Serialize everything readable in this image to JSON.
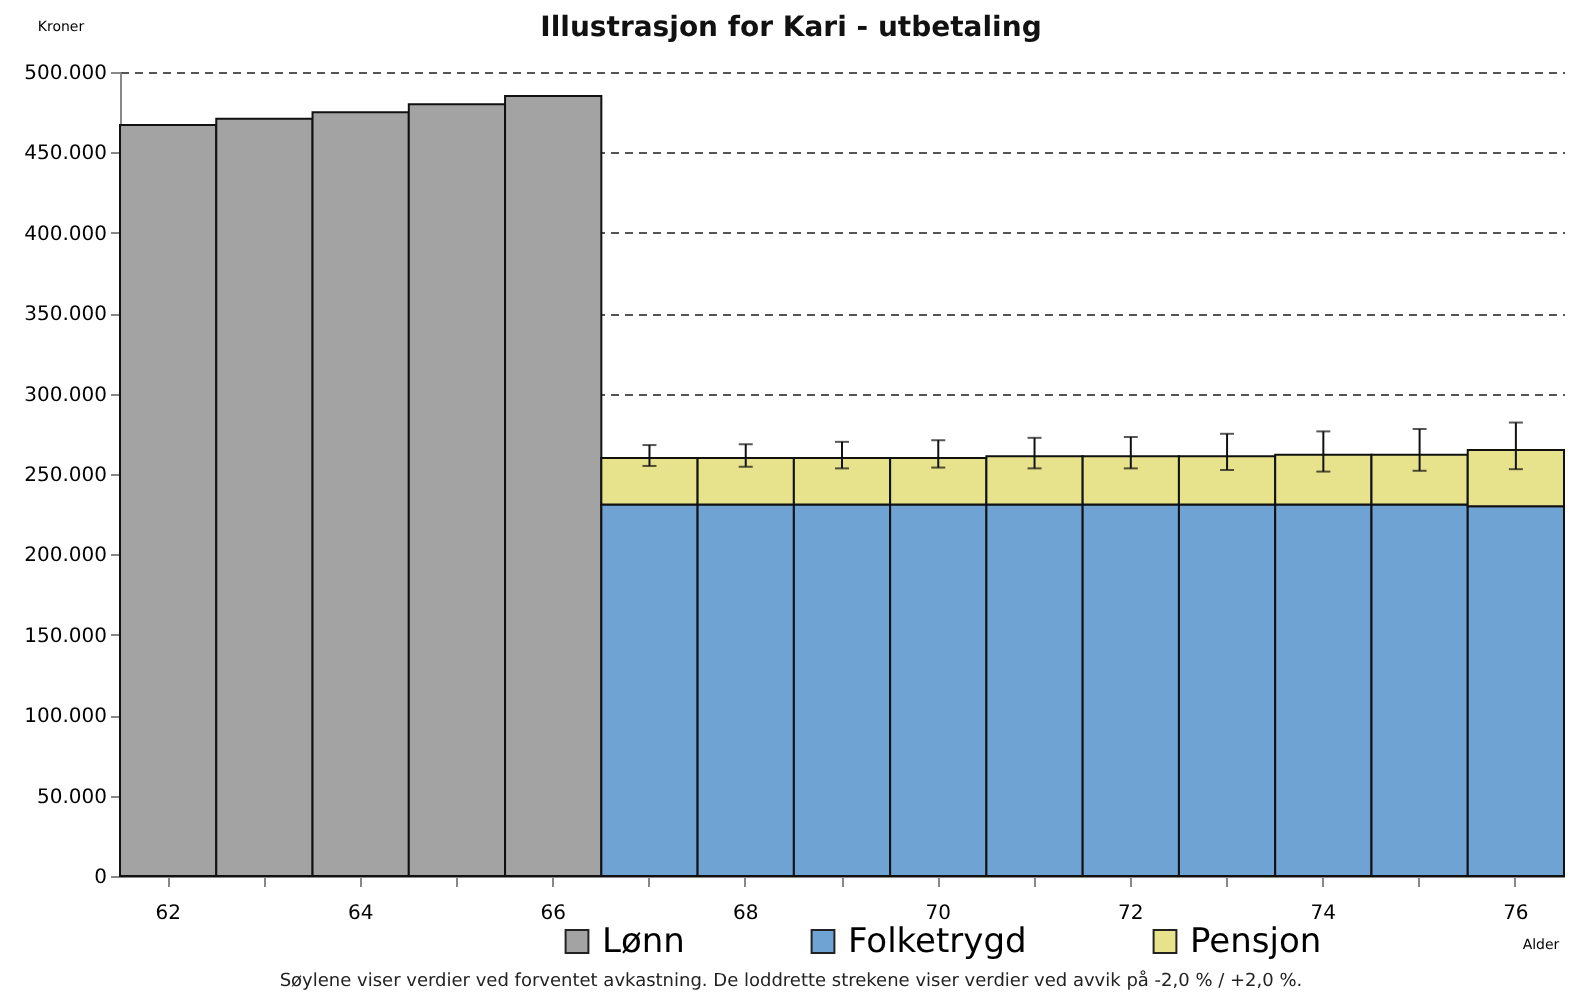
{
  "chart_data": {
    "type": "bar",
    "title": "Illustrasjon for Kari - utbetaling",
    "xlabel": "Alder",
    "ylabel": "Kroner",
    "categories": [
      "62",
      null,
      "64",
      null,
      "66",
      null,
      "68",
      null,
      "70",
      null,
      "72",
      null,
      "74",
      null,
      "76"
    ],
    "stacked": true,
    "series": [
      {
        "name": "Lønn",
        "color": "#a3a3a3",
        "values": [
          467000,
          471000,
          475000,
          480000,
          485000,
          null,
          null,
          null,
          null,
          null,
          null,
          null,
          null,
          null,
          null
        ]
      },
      {
        "name": "Folketrygd",
        "color": "#6fa3d3",
        "values": [
          null,
          null,
          null,
          null,
          null,
          231000,
          231000,
          231000,
          231000,
          231000,
          231000,
          231000,
          231000,
          231000,
          230000
        ]
      },
      {
        "name": "Pensjon",
        "color": "#e6e38c",
        "values": [
          null,
          null,
          null,
          null,
          null,
          29000,
          29000,
          29000,
          29000,
          30000,
          30000,
          30000,
          31000,
          31000,
          35000
        ],
        "errors": [
          null,
          null,
          null,
          null,
          null,
          [
            255000,
            268000
          ],
          [
            254500,
            268500
          ],
          [
            253500,
            270000
          ],
          [
            254000,
            271000
          ],
          [
            253500,
            272500
          ],
          [
            253500,
            273000
          ],
          [
            252500,
            275000
          ],
          [
            251500,
            276500
          ],
          [
            252000,
            278000
          ],
          [
            253000,
            282000
          ]
        ]
      }
    ],
    "ylim": [
      0,
      500000
    ],
    "yticks": [
      {
        "value": 0,
        "label": "0"
      },
      {
        "value": 50000,
        "label": "50.000"
      },
      {
        "value": 100000,
        "label": "100.000"
      },
      {
        "value": 150000,
        "label": "150.000"
      },
      {
        "value": 200000,
        "label": "200.000"
      },
      {
        "value": 250000,
        "label": "250.000"
      },
      {
        "value": 300000,
        "label": "300.000"
      },
      {
        "value": 350000,
        "label": "350.000"
      },
      {
        "value": 400000,
        "label": "400.000"
      },
      {
        "value": 450000,
        "label": "450.000"
      },
      {
        "value": 500000,
        "label": "500.000"
      }
    ],
    "grid": "y",
    "legend": "bottom",
    "annotations": [
      "Søylene viser verdier ved forventet avkastning. De loddrette strekene viser verdier ved avvik på -2,0 % / +2,0 %."
    ]
  }
}
